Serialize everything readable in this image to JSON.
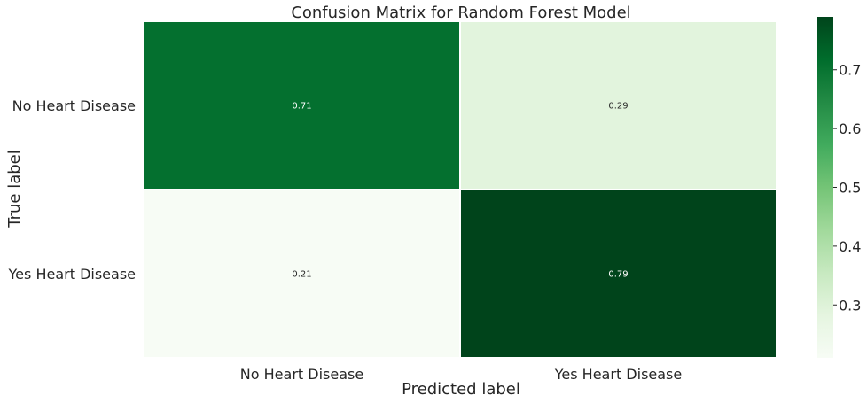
{
  "chart_data": {
    "type": "heatmap",
    "title": "Confusion Matrix for Random Forest Model",
    "xlabel": "Predicted label",
    "ylabel": "True label",
    "x_categories": [
      "No Heart Disease",
      "Yes Heart Disease"
    ],
    "y_categories": [
      "No Heart Disease",
      "Yes Heart Disease"
    ],
    "values": [
      [
        0.71,
        0.29
      ],
      [
        0.21,
        0.79
      ]
    ],
    "value_labels": [
      [
        "0.71",
        "0.29"
      ],
      [
        "0.21",
        "0.79"
      ]
    ],
    "colormap": "Greens",
    "colorbar": {
      "range": [
        0.21,
        0.79
      ],
      "ticks": [
        0.3,
        0.4,
        0.5,
        0.6,
        0.7
      ],
      "tick_labels": [
        "0.3",
        "0.4",
        "0.5",
        "0.6",
        "0.7"
      ]
    },
    "cell_border_color": "#ffffff",
    "grid": false
  }
}
